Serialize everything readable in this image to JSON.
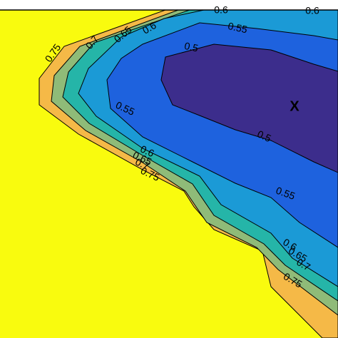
{
  "chart_data": {
    "type": "contour",
    "levels": [
      0.75,
      0.7,
      0.65,
      0.6,
      0.55,
      0.5
    ],
    "colors": [
      "#f9fb0e",
      "#f5b947",
      "#8fbb78",
      "#25b5a8",
      "#1b9ad6",
      "#1e62de",
      "#3c2d8c"
    ],
    "marker": "X"
  }
}
